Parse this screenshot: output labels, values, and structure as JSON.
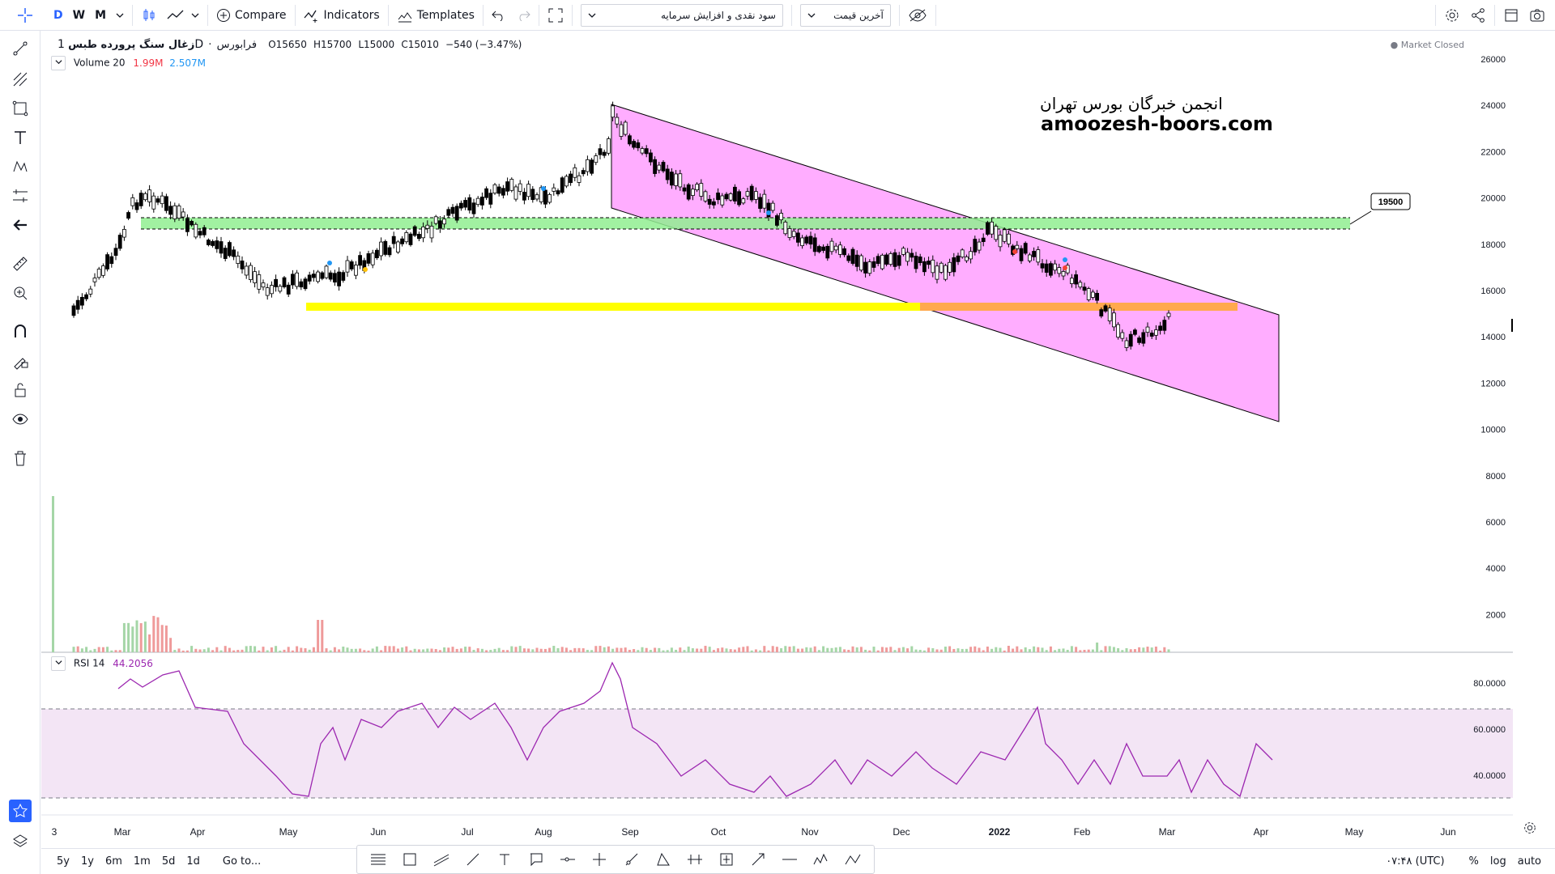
{
  "toolbar": {
    "intervals": [
      "D",
      "W",
      "M"
    ],
    "compare_label": "Compare",
    "indicators_label": "Indicators",
    "templates_label": "Templates",
    "select1_value": "سود نقدی و افزایش سرمایه",
    "select2_value": "آخرین قیمت"
  },
  "symbol": {
    "name": "زغال سنگ پرورده طبس",
    "interval": "1D",
    "exchange": "فرابورس",
    "open": "O15650",
    "high": "H15700",
    "low": "L15000",
    "close": "C15010",
    "change": "−540 (−3.47%)",
    "status": "Market Closed",
    "last_price": "15010"
  },
  "volume_legend": {
    "label": "Volume 20",
    "v1": "1.99M",
    "v2": "2.507M"
  },
  "rsi_legend": {
    "label": "RSI 14",
    "value": "44.2056"
  },
  "watermark": {
    "line1": "انجمن خبرگان بورس تهران",
    "line2": "amoozesh-boors.com"
  },
  "callout_label": "19500",
  "price_axis": [
    "26000",
    "24000",
    "22000",
    "20000",
    "18000",
    "16000",
    "14000",
    "12000",
    "10000",
    "8000",
    "6000",
    "4000",
    "2000"
  ],
  "rsi_axis": [
    "80.0000",
    "60.0000",
    "40.0000"
  ],
  "time_axis": [
    "3",
    "Mar",
    "Apr",
    "May",
    "Jun",
    "Jul",
    "Aug",
    "Sep",
    "Oct",
    "Nov",
    "Dec",
    "2022",
    "Feb",
    "Mar",
    "Apr",
    "May",
    "Jun"
  ],
  "bottom": {
    "ranges": [
      "5y",
      "1y",
      "6m",
      "1m",
      "5d",
      "1d"
    ],
    "goto_label": "Go to...",
    "time_label": "۰۷:۴۸ (UTC)",
    "percent_label": "%",
    "log_label": "log",
    "auto_label": "auto"
  },
  "colors": {
    "up": "#ffffff",
    "down": "#000000",
    "channel": "#ff80ff",
    "support_zone": "#90ee90",
    "yellow_line": "#ffff00",
    "orange_zone": "#ffa94d",
    "rsi": "#9c27b0",
    "rsi_band": "#f3e5f5"
  }
}
